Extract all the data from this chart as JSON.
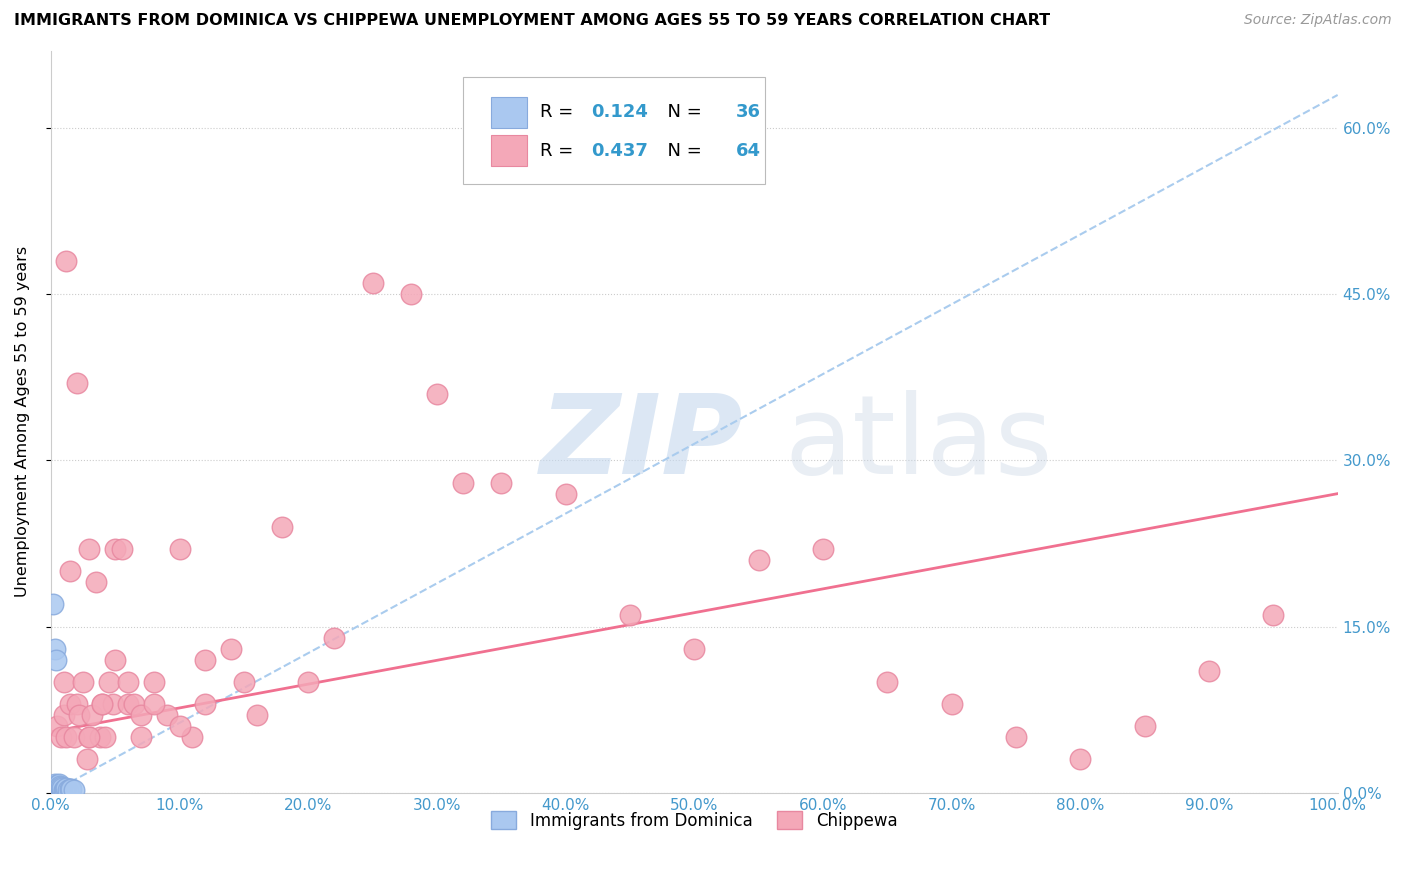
{
  "title": "IMMIGRANTS FROM DOMINICA VS CHIPPEWA UNEMPLOYMENT AMONG AGES 55 TO 59 YEARS CORRELATION CHART",
  "source": "Source: ZipAtlas.com",
  "ylabel": "Unemployment Among Ages 55 to 59 years",
  "xlim": [
    0,
    1.0
  ],
  "ylim": [
    0,
    0.67
  ],
  "xticks": [
    0.0,
    0.1,
    0.2,
    0.3,
    0.4,
    0.5,
    0.6,
    0.7,
    0.8,
    0.9,
    1.0
  ],
  "xticklabels": [
    "0.0%",
    "10.0%",
    "20.0%",
    "30.0%",
    "40.0%",
    "50.0%",
    "60.0%",
    "70.0%",
    "80.0%",
    "90.0%",
    "100.0%"
  ],
  "yticks": [
    0.0,
    0.15,
    0.3,
    0.45,
    0.6
  ],
  "yticklabels": [
    "0.0%",
    "15.0%",
    "30.0%",
    "45.0%",
    "60.0%"
  ],
  "legend_labels": [
    "Immigrants from Dominica",
    "Chippewa"
  ],
  "series1_color": "#aac8f0",
  "series2_color": "#f4a8b8",
  "series1_edge_color": "#88aadd",
  "series2_edge_color": "#e888a0",
  "trendline1_color": "#aaccee",
  "trendline2_color": "#f07090",
  "R1": 0.124,
  "N1": 36,
  "R2": 0.437,
  "N2": 64,
  "trendline1_x0": 0.0,
  "trendline1_y0": 0.0,
  "trendline1_x1": 1.0,
  "trendline1_y1": 0.63,
  "trendline2_x0": 0.0,
  "trendline2_y0": 0.055,
  "trendline2_x1": 1.0,
  "trendline2_y1": 0.27,
  "series1_x": [
    0.001,
    0.001,
    0.002,
    0.002,
    0.002,
    0.003,
    0.003,
    0.003,
    0.003,
    0.004,
    0.004,
    0.004,
    0.005,
    0.005,
    0.005,
    0.006,
    0.006,
    0.006,
    0.006,
    0.007,
    0.007,
    0.007,
    0.008,
    0.008,
    0.009,
    0.009,
    0.01,
    0.011,
    0.012,
    0.013,
    0.015,
    0.016,
    0.018,
    0.002,
    0.003,
    0.004
  ],
  "series1_y": [
    0.0,
    0.005,
    0.0,
    0.0,
    0.005,
    0.0,
    0.002,
    0.005,
    0.008,
    0.0,
    0.003,
    0.006,
    0.0,
    0.003,
    0.007,
    0.0,
    0.002,
    0.005,
    0.008,
    0.0,
    0.003,
    0.006,
    0.002,
    0.005,
    0.0,
    0.004,
    0.002,
    0.003,
    0.004,
    0.002,
    0.003,
    0.003,
    0.002,
    0.17,
    0.13,
    0.12
  ],
  "series2_x": [
    0.005,
    0.008,
    0.01,
    0.01,
    0.012,
    0.015,
    0.015,
    0.018,
    0.02,
    0.022,
    0.025,
    0.028,
    0.03,
    0.03,
    0.032,
    0.035,
    0.038,
    0.04,
    0.042,
    0.045,
    0.048,
    0.05,
    0.055,
    0.06,
    0.065,
    0.07,
    0.08,
    0.09,
    0.1,
    0.11,
    0.12,
    0.14,
    0.15,
    0.16,
    0.18,
    0.2,
    0.22,
    0.25,
    0.28,
    0.3,
    0.32,
    0.35,
    0.4,
    0.45,
    0.5,
    0.55,
    0.6,
    0.65,
    0.7,
    0.75,
    0.8,
    0.85,
    0.9,
    0.95,
    0.012,
    0.02,
    0.03,
    0.04,
    0.05,
    0.06,
    0.07,
    0.08,
    0.1,
    0.12
  ],
  "series2_y": [
    0.06,
    0.05,
    0.07,
    0.1,
    0.05,
    0.08,
    0.2,
    0.05,
    0.08,
    0.07,
    0.1,
    0.03,
    0.05,
    0.22,
    0.07,
    0.19,
    0.05,
    0.08,
    0.05,
    0.1,
    0.08,
    0.22,
    0.22,
    0.08,
    0.08,
    0.07,
    0.1,
    0.07,
    0.22,
    0.05,
    0.08,
    0.13,
    0.1,
    0.07,
    0.24,
    0.1,
    0.14,
    0.46,
    0.45,
    0.36,
    0.28,
    0.28,
    0.27,
    0.16,
    0.13,
    0.21,
    0.22,
    0.1,
    0.08,
    0.05,
    0.03,
    0.06,
    0.11,
    0.16,
    0.48,
    0.37,
    0.05,
    0.08,
    0.12,
    0.1,
    0.05,
    0.08,
    0.06,
    0.12
  ]
}
